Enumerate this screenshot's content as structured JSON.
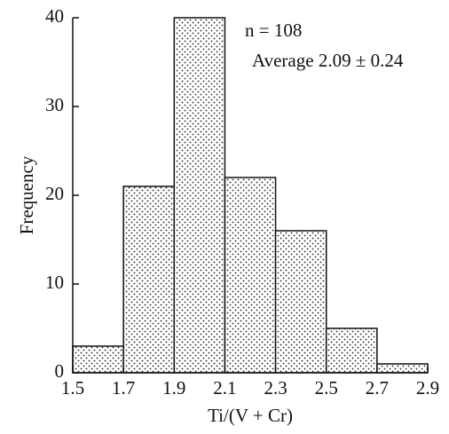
{
  "chart_data": {
    "type": "histogram",
    "x_label": "Ti/(V + Cr)",
    "y_label": "Frequency",
    "annotations": [
      "n = 108",
      "Average 2.09 ± 0.24"
    ],
    "bins": [
      1.5,
      1.7,
      1.9,
      2.1,
      2.3,
      2.5,
      2.7,
      2.9
    ],
    "values": [
      3,
      21,
      40,
      22,
      16,
      5,
      1
    ],
    "xlim": [
      1.5,
      2.9
    ],
    "ylim": [
      0,
      40
    ],
    "xticks": [
      1.5,
      1.7,
      1.9,
      2.1,
      2.3,
      2.5,
      2.7,
      2.9
    ],
    "yticks": [
      0,
      10,
      20,
      30,
      40
    ],
    "color": "#ffffff",
    "grid": false
  }
}
